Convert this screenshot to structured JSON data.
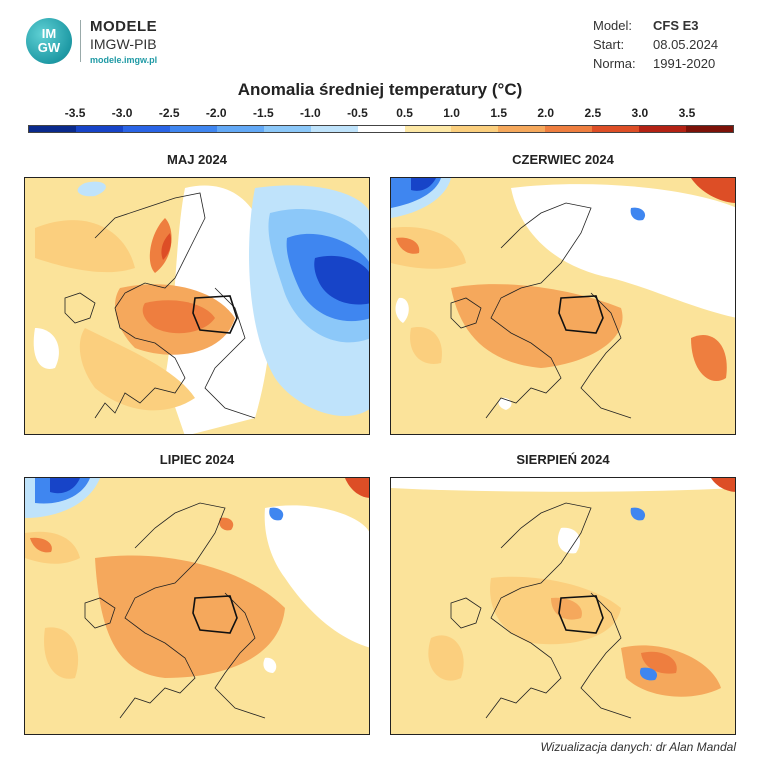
{
  "header": {
    "logo_text": "IM\nGW",
    "brand_title": "MODELE",
    "brand_sub": "IMGW-PIB",
    "brand_url": "modele.imgw.pl"
  },
  "meta": {
    "model_label": "Model:",
    "model_value": "CFS E3",
    "start_label": "Start:",
    "start_value": "08.05.2024",
    "norm_label": "Norma:",
    "norm_value": "1991-2020"
  },
  "title": "Anomalia średniej temperatury (°C)",
  "colorbar": {
    "ticks": [
      "-3.5",
      "-3.0",
      "-2.5",
      "-2.0",
      "-1.5",
      "-1.0",
      "-0.5",
      "0.5",
      "1.0",
      "1.5",
      "2.0",
      "2.5",
      "3.0",
      "3.5"
    ],
    "colors": [
      "#0a2a8c",
      "#1744c8",
      "#2a64e6",
      "#3f86f0",
      "#63a9f6",
      "#8cc8f9",
      "#bfe3fb",
      "#ffffff",
      "#fde8a6",
      "#fbcf7e",
      "#f5a85c",
      "#ee7e3f",
      "#dd4e26",
      "#b32214",
      "#7c1208"
    ]
  },
  "panels": [
    {
      "title": "MAJ 2024"
    },
    {
      "title": "CZERWIEC 2024"
    },
    {
      "title": "LIPIEC 2024"
    },
    {
      "title": "SIERPIEŃ 2024"
    }
  ],
  "credit": "Wizualizacja danych: dr Alan Mandal"
}
